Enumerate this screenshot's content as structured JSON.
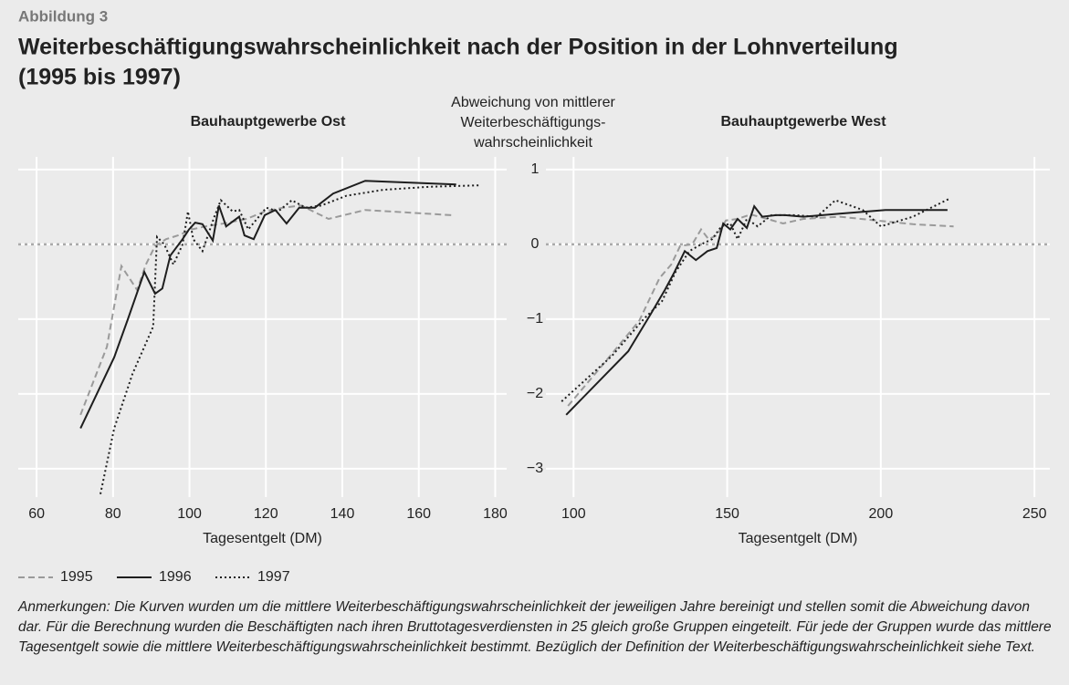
{
  "figure_label": "Abbildung 3",
  "title": [
    "Weiterbeschäftigungswahrscheinlichkeit nach der Position in der Lohnverteilung",
    "(1995 bis 1997)"
  ],
  "notes": "Anmerkungen: Die Kurven wurden um die mittlere Weiterbeschäftigungswahrscheinlichkeit der jeweiligen Jahre bereinigt und stellen somit die Abweichung davon dar. Für die Berechnung wurden die Beschäftigten nach ihren Bruttotagesverdiensten in 25 gleich große Gruppen eingeteilt. Für jede der Gruppen wurde das mittlere Tagesentgelt sowie die mittlere Weiterbeschäftigungswahrscheinlichkeit bestimmt. Bezüglich der Definition der Weiterbeschäftigungswahrscheinlichkeit siehe Text.",
  "chart_data": {
    "type": "line",
    "ylabel": [
      "Abweichung von mittlerer",
      "Weiterbeschäftigungs-",
      "wahrscheinlichkeit"
    ],
    "ylim": [
      -3.38,
      1.17
    ],
    "yticks": [
      1,
      0,
      {
        "value": -1,
        "label": "−1"
      },
      {
        "value": -2,
        "label": "−2"
      },
      {
        "value": -3,
        "label": "−3"
      }
    ],
    "reference_line": 0,
    "grid": true,
    "legend": [
      {
        "name": "1995",
        "color": "#9a9a9a",
        "dash": "dashed"
      },
      {
        "name": "1996",
        "color": "#1e1e1e",
        "dash": "solid"
      },
      {
        "name": "1997",
        "color": "#1e1e1e",
        "dash": "dotted"
      }
    ],
    "panels": [
      {
        "title": "Bauhauptgewerbe Ost",
        "xlabel": "Tagesentgelt (DM)",
        "xlim": [
          55.2,
          183
        ],
        "xticks": [
          60,
          80,
          100,
          120,
          140,
          160,
          180
        ],
        "series": [
          {
            "x": [
              71.5,
              78.4,
              82.2,
              86.3,
              88.6,
              91,
              93.9,
              97,
              100.6,
              104.2,
              109,
              115,
              119.7,
              124.5,
              129.2,
              136.4,
              146,
              168.6
            ],
            "values": [
              -2.28,
              -1.37,
              -0.29,
              -0.61,
              -0.27,
              -0.02,
              0.07,
              0.12,
              0.2,
              0.24,
              0.28,
              0.34,
              0.44,
              0.49,
              0.52,
              0.34,
              0.46,
              0.39
            ]
          },
          {
            "x": [
              71.5,
              80.3,
              83.9,
              88.2,
              91,
              92.9,
              95,
              98.2,
              99.9,
              101.5,
              103.4,
              106.1,
              107.7,
              109.6,
              113,
              114.4,
              116.8,
              119.7,
              122.5,
              125.4,
              128.7,
              132.8,
              137.6,
              146,
              169.8
            ],
            "values": [
              -2.46,
              -1.51,
              -1.0,
              -0.37,
              -0.66,
              -0.59,
              -0.15,
              0.07,
              0.2,
              0.29,
              0.27,
              0.05,
              0.52,
              0.24,
              0.37,
              0.12,
              0.07,
              0.39,
              0.46,
              0.28,
              0.49,
              0.49,
              0.68,
              0.85,
              0.8
            ]
          },
          {
            "x": [
              76.7,
              80.3,
              85.1,
              90.5,
              91.5,
              93.4,
              95.8,
              98.2,
              99.6,
              101,
              103.4,
              106.5,
              108.2,
              111.3,
              113,
              115.4,
              120.1,
              123.2,
              126.8,
              130.4,
              134.5,
              141.1,
              150.7,
              162.6,
              175.8
            ],
            "values": [
              -3.34,
              -2.46,
              -1.73,
              -1.1,
              0.1,
              0,
              -0.27,
              0,
              0.44,
              0.07,
              -0.09,
              0.37,
              0.59,
              0.44,
              0.46,
              0.2,
              0.49,
              0.44,
              0.59,
              0.49,
              0.52,
              0.65,
              0.73,
              0.77,
              0.79
            ]
          }
        ]
      },
      {
        "title": "Bauhauptgewerbe West",
        "xlabel": "Tagesentgelt (DM)",
        "xlim": [
          91,
          255
        ],
        "xticks": [
          100,
          150,
          200,
          250
        ],
        "series": [
          {
            "x": [
              98.2,
              109.5,
              121.4,
              128,
              131.8,
              134.7,
              138.6,
              141.5,
              143.9,
              146.6,
              149.6,
              153.4,
              157.6,
              163,
              168.2,
              174.8,
              186.6,
              198.5,
              210.4,
              223.7
            ],
            "values": [
              -2.16,
              -1.61,
              -1.02,
              -0.45,
              -0.27,
              -0.02,
              0,
              0.2,
              0.07,
              0.12,
              0.32,
              0.34,
              0.4,
              0.34,
              0.28,
              0.34,
              0.37,
              0.32,
              0.27,
              0.24
            ]
          },
          {
            "x": [
              97.6,
              117.8,
              125,
              129.7,
              132.6,
              136.2,
              139.8,
              143.6,
              146.6,
              148.7,
              151,
              153.4,
              156.4,
              158.8,
              161.4,
              165.9,
              168.8,
              174.8,
              186.6,
              201.5,
              221.7
            ],
            "values": [
              -2.28,
              -1.43,
              -0.94,
              -0.61,
              -0.39,
              -0.09,
              -0.21,
              -0.09,
              -0.05,
              0.28,
              0.2,
              0.34,
              0.22,
              0.51,
              0.37,
              0.39,
              0.39,
              0.37,
              0.41,
              0.46,
              0.46
            ]
          },
          {
            "x": [
              96.1,
              112.5,
              122.8,
              128.8,
              133.2,
              137.7,
              141.5,
              145.1,
              148.1,
              151,
              153.4,
              156.4,
              159.9,
              164.4,
              171.8,
              179.2,
              185.2,
              194.1,
              200,
              210.4,
              222.3
            ],
            "values": [
              -2.1,
              -1.49,
              -1.0,
              -0.76,
              -0.37,
              -0.09,
              0,
              0.07,
              0.24,
              0.28,
              0.07,
              0.34,
              0.24,
              0.39,
              0.39,
              0.37,
              0.59,
              0.46,
              0.24,
              0.37,
              0.61
            ]
          }
        ]
      }
    ]
  }
}
